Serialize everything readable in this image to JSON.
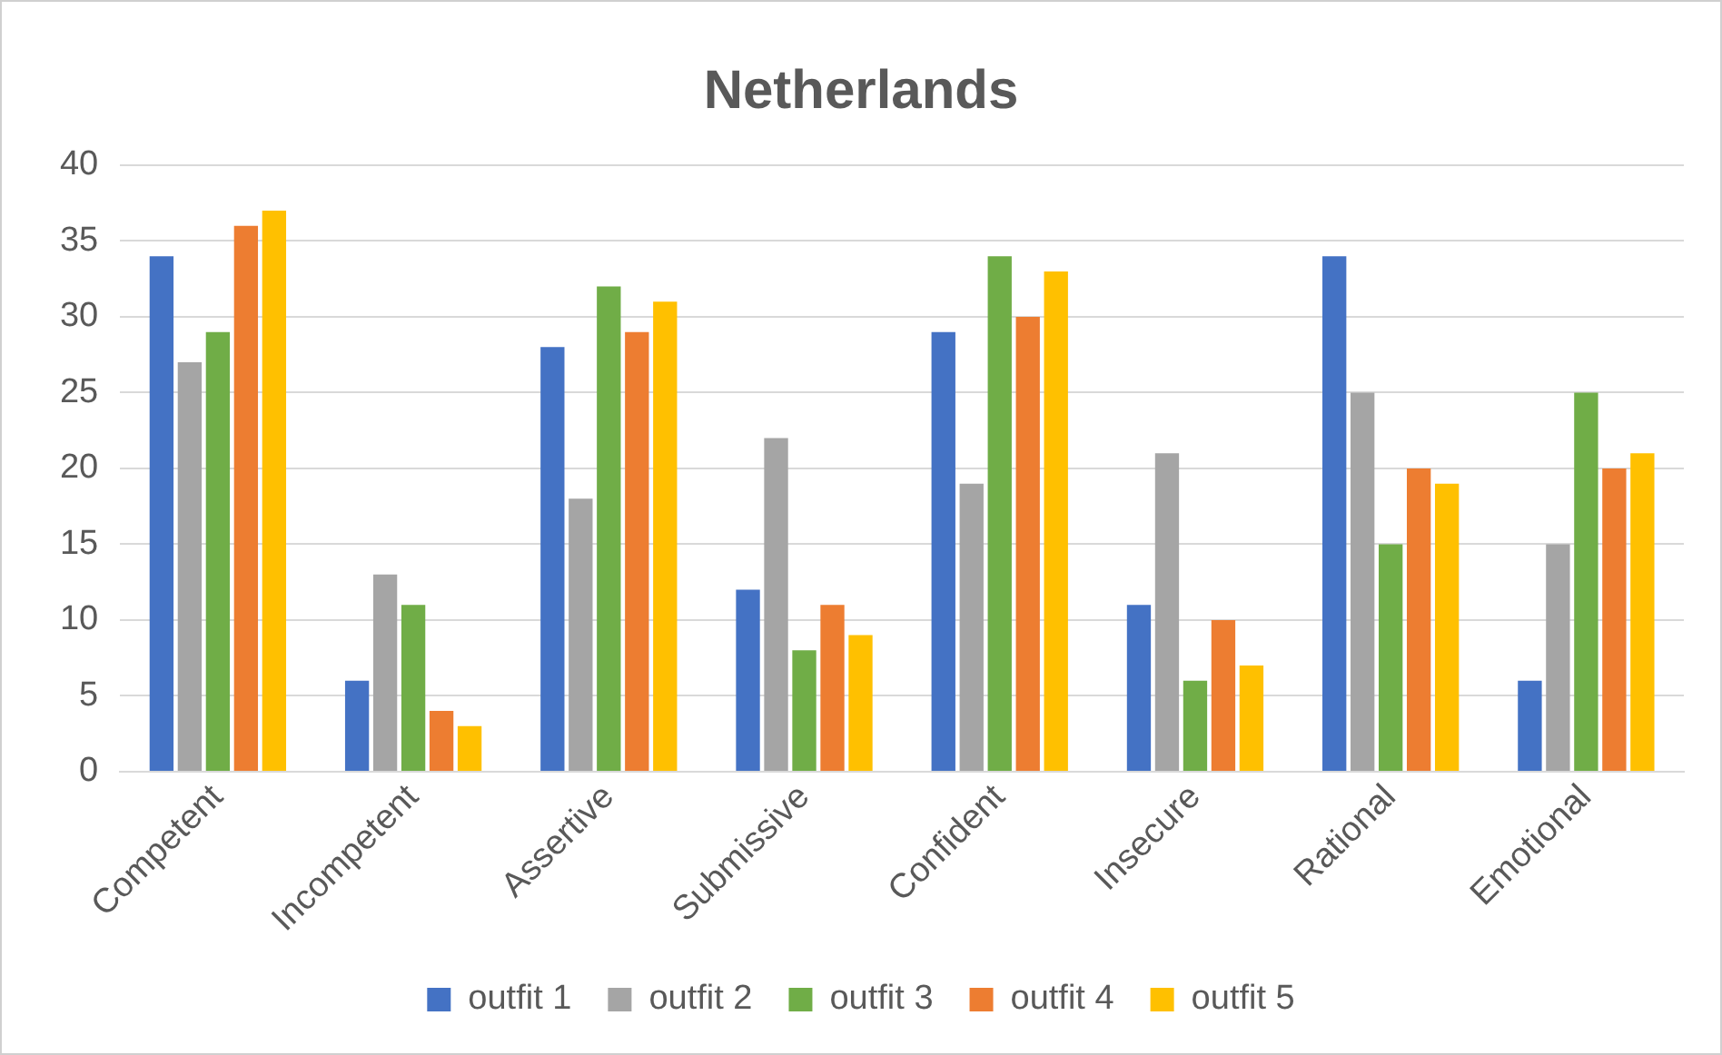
{
  "chart_data": {
    "type": "bar",
    "title": "Netherlands",
    "categories": [
      "Competent",
      "Incompetent",
      "Assertive",
      "Submissive",
      "Confident",
      "Insecure",
      "Rational",
      "Emotional"
    ],
    "series": [
      {
        "name": "outfit 1",
        "color": "#4472c4",
        "values": [
          34,
          6,
          28,
          12,
          29,
          11,
          34,
          6
        ]
      },
      {
        "name": "outfit 2",
        "color": "#a5a5a5",
        "values": [
          27,
          13,
          18,
          22,
          19,
          21,
          25,
          15
        ]
      },
      {
        "name": "outfit 3",
        "color": "#70ad47",
        "values": [
          29,
          11,
          32,
          8,
          34,
          6,
          15,
          25
        ]
      },
      {
        "name": "outfit 4",
        "color": "#ed7d31",
        "values": [
          36,
          4,
          29,
          11,
          30,
          10,
          20,
          20
        ]
      },
      {
        "name": "outfit 5",
        "color": "#ffc000",
        "values": [
          37,
          3,
          31,
          9,
          33,
          7,
          19,
          21
        ]
      }
    ],
    "ylim": [
      0,
      40
    ],
    "yticks": [
      0,
      5,
      10,
      15,
      20,
      25,
      30,
      35,
      40
    ],
    "grid": "y",
    "legend": "bottom"
  }
}
